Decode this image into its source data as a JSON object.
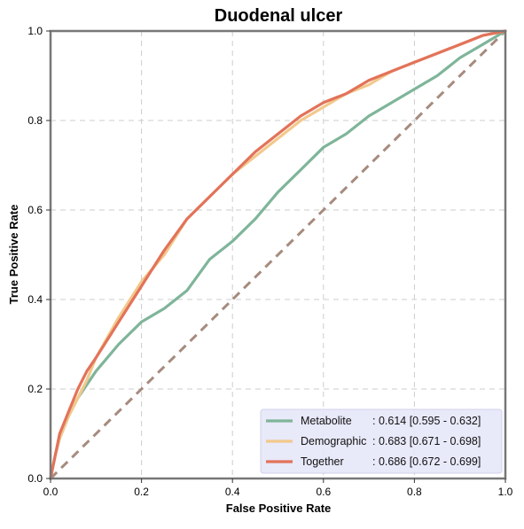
{
  "chart_data": {
    "type": "line",
    "title": "Duodenal ulcer",
    "xlabel": "False Positive Rate",
    "ylabel": "True Positive Rate",
    "xlim": [
      0,
      1
    ],
    "ylim": [
      0,
      1
    ],
    "xticks": [
      "0.0",
      "0.2",
      "0.4",
      "0.6",
      "0.8",
      "1.0"
    ],
    "yticks": [
      "0.0",
      "0.2",
      "0.4",
      "0.6",
      "0.8",
      "1.0"
    ],
    "grid": true,
    "legend_position": "bottom-right",
    "chance_line": {
      "x": [
        0,
        1
      ],
      "y": [
        0,
        1
      ],
      "color": "#a68b7e"
    },
    "series": [
      {
        "name": "Metabolite",
        "auc_label": ": 0.614 [0.595 - 0.632]",
        "color": "#7fb59a",
        "x": [
          0,
          0.01,
          0.02,
          0.04,
          0.06,
          0.1,
          0.15,
          0.2,
          0.25,
          0.3,
          0.35,
          0.4,
          0.45,
          0.5,
          0.55,
          0.6,
          0.65,
          0.7,
          0.75,
          0.8,
          0.85,
          0.9,
          0.95,
          1.0
        ],
        "y": [
          0,
          0.05,
          0.09,
          0.14,
          0.18,
          0.24,
          0.3,
          0.35,
          0.38,
          0.42,
          0.49,
          0.53,
          0.58,
          0.64,
          0.69,
          0.74,
          0.77,
          0.81,
          0.84,
          0.87,
          0.9,
          0.94,
          0.97,
          1.0
        ]
      },
      {
        "name": "Demographic",
        "auc_label": ": 0.683 [0.671 - 0.698]",
        "color": "#f2c98c",
        "x": [
          0,
          0.01,
          0.02,
          0.04,
          0.06,
          0.08,
          0.1,
          0.15,
          0.2,
          0.25,
          0.3,
          0.35,
          0.4,
          0.45,
          0.5,
          0.55,
          0.6,
          0.65,
          0.7,
          0.75,
          0.8,
          0.85,
          0.9,
          0.95,
          1.0
        ],
        "y": [
          0,
          0.05,
          0.09,
          0.14,
          0.18,
          0.22,
          0.27,
          0.36,
          0.44,
          0.5,
          0.58,
          0.63,
          0.68,
          0.72,
          0.76,
          0.8,
          0.83,
          0.86,
          0.88,
          0.91,
          0.93,
          0.95,
          0.97,
          0.99,
          1.0
        ]
      },
      {
        "name": "Together",
        "auc_label": ": 0.686 [0.672 - 0.699]",
        "color": "#e2735a",
        "x": [
          0,
          0.01,
          0.02,
          0.04,
          0.06,
          0.08,
          0.1,
          0.15,
          0.2,
          0.25,
          0.3,
          0.35,
          0.4,
          0.45,
          0.5,
          0.55,
          0.6,
          0.65,
          0.7,
          0.75,
          0.8,
          0.85,
          0.9,
          0.95,
          1.0
        ],
        "y": [
          0,
          0.05,
          0.1,
          0.15,
          0.2,
          0.24,
          0.27,
          0.35,
          0.43,
          0.51,
          0.58,
          0.63,
          0.68,
          0.73,
          0.77,
          0.81,
          0.84,
          0.86,
          0.89,
          0.91,
          0.93,
          0.95,
          0.97,
          0.99,
          1.0
        ]
      }
    ]
  }
}
